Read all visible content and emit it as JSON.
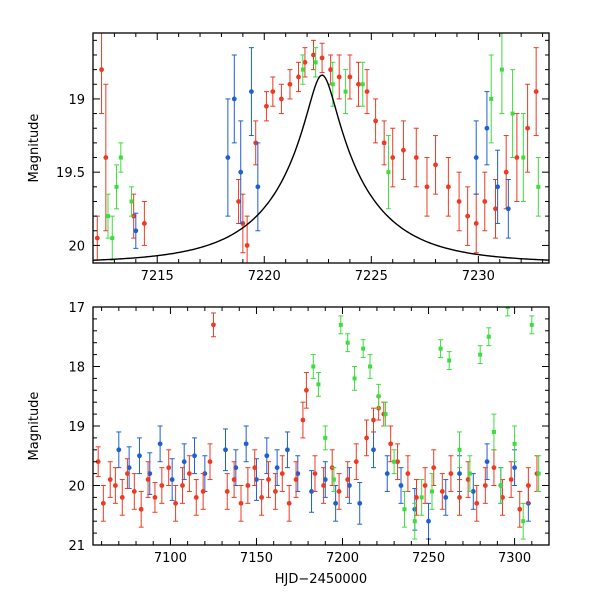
{
  "chart_data": [
    {
      "type": "scatter",
      "panel": "top",
      "title": "",
      "xlabel": "",
      "ylabel": "Magnitude",
      "xlim": [
        7212,
        7233.3
      ],
      "ylim": [
        20.12,
        18.55
      ],
      "x_ticks_major": [
        7215,
        7220,
        7225,
        7230
      ],
      "x_tick_labels": [
        "7215",
        "7220",
        "7225",
        "7230"
      ],
      "y_ticks_major": [
        19.0,
        19.5,
        20.0
      ],
      "y_tick_labels": [
        "19",
        "19.5",
        "20"
      ],
      "series_colors": {
        "red": "#ee3a22",
        "blue": "#1f5fd6",
        "green": "#3fdc3f",
        "model": "#000000"
      },
      "model_curve": {
        "description": "Paczynski-like microlensing fit",
        "t0": 7222.7,
        "u0": 0.15,
        "tE": 4.2,
        "baseline_mag": 20.12
      },
      "series": [
        {
          "name": "red",
          "points": [
            [
              7212.2,
              19.95,
              0.15
            ],
            [
              7212.4,
              18.8,
              0.3
            ],
            [
              7212.6,
              19.4,
              0.5
            ],
            [
              7213.9,
              19.8,
              0.15
            ],
            [
              7214.4,
              19.85,
              0.15
            ],
            [
              7218.8,
              19.7,
              0.15
            ],
            [
              7219.0,
              19.85,
              0.2
            ],
            [
              7219.2,
              20.0,
              0.2
            ],
            [
              7219.6,
              19.3,
              0.15
            ],
            [
              7220.1,
              19.05,
              0.1
            ],
            [
              7220.4,
              18.95,
              0.1
            ],
            [
              7220.8,
              19.0,
              0.1
            ],
            [
              7221.2,
              18.9,
              0.1
            ],
            [
              7221.6,
              18.85,
              0.1
            ],
            [
              7221.9,
              18.75,
              0.1
            ],
            [
              7222.3,
              18.7,
              0.1
            ],
            [
              7222.7,
              18.72,
              0.1
            ],
            [
              7223.1,
              18.8,
              0.1
            ],
            [
              7223.5,
              18.85,
              0.15
            ],
            [
              7224.0,
              18.85,
              0.15
            ],
            [
              7224.4,
              18.9,
              0.15
            ],
            [
              7224.8,
              18.95,
              0.15
            ],
            [
              7225.2,
              19.15,
              0.15
            ],
            [
              7225.6,
              19.3,
              0.15
            ],
            [
              7226.0,
              19.4,
              0.2
            ],
            [
              7226.5,
              19.35,
              0.2
            ],
            [
              7227.1,
              19.4,
              0.2
            ],
            [
              7227.6,
              19.6,
              0.2
            ],
            [
              7228.0,
              19.45,
              0.2
            ],
            [
              7228.6,
              19.6,
              0.2
            ],
            [
              7229.1,
              19.7,
              0.2
            ],
            [
              7229.5,
              19.8,
              0.2
            ],
            [
              7229.9,
              19.85,
              0.2
            ],
            [
              7230.3,
              19.7,
              0.2
            ],
            [
              7230.8,
              19.75,
              0.2
            ],
            [
              7231.3,
              19.5,
              0.25
            ],
            [
              7231.8,
              19.4,
              0.3
            ],
            [
              7232.3,
              19.2,
              0.3
            ],
            [
              7232.7,
              18.95,
              0.3
            ]
          ]
        },
        {
          "name": "blue",
          "points": [
            [
              7214.0,
              19.9,
              0.12
            ],
            [
              7218.3,
              19.4,
              0.4
            ],
            [
              7218.6,
              19.0,
              0.3
            ],
            [
              7218.9,
              19.5,
              0.35
            ],
            [
              7219.4,
              18.95,
              0.3
            ],
            [
              7219.7,
              19.6,
              0.3
            ],
            [
              7229.9,
              19.4,
              0.25
            ],
            [
              7230.4,
              19.2,
              0.25
            ],
            [
              7230.9,
              19.6,
              0.25
            ],
            [
              7231.4,
              19.75,
              0.2
            ]
          ]
        },
        {
          "name": "green",
          "points": [
            [
              7212.7,
              19.8,
              0.15
            ],
            [
              7212.9,
              19.95,
              0.15
            ],
            [
              7213.1,
              19.6,
              0.15
            ],
            [
              7213.3,
              19.4,
              0.1
            ],
            [
              7213.8,
              19.7,
              0.1
            ],
            [
              7221.8,
              18.8,
              0.1
            ],
            [
              7222.4,
              18.75,
              0.1
            ],
            [
              7223.2,
              18.9,
              0.15
            ],
            [
              7223.8,
              18.95,
              0.15
            ],
            [
              7224.6,
              18.9,
              0.15
            ],
            [
              7225.8,
              19.5,
              0.25
            ],
            [
              7230.6,
              19.0,
              0.3
            ],
            [
              7231.1,
              18.8,
              0.3
            ],
            [
              7231.6,
              19.1,
              0.3
            ],
            [
              7232.1,
              19.4,
              0.3
            ],
            [
              7232.8,
              19.6,
              0.2
            ]
          ]
        }
      ]
    },
    {
      "type": "scatter",
      "panel": "bottom",
      "title": "",
      "xlabel": "HJD−2450000",
      "ylabel": "Magnitude",
      "xlim": [
        7055,
        7320
      ],
      "ylim": [
        21,
        17
      ],
      "x_ticks_major": [
        7100,
        7150,
        7200,
        7250,
        7300
      ],
      "x_tick_labels": [
        "7100",
        "7150",
        "7200",
        "7250",
        "7300"
      ],
      "y_ticks_major": [
        17,
        18,
        19,
        20,
        21
      ],
      "y_tick_labels": [
        "17",
        "18",
        "19",
        "20",
        "21"
      ],
      "series_colors": {
        "red": "#ee3a22",
        "blue": "#1f5fd6",
        "green": "#3fdc3f"
      },
      "series": [
        {
          "name": "blue",
          "points": [
            [
              7070,
              19.4,
              0.3
            ],
            [
              7076,
              19.7,
              0.35
            ],
            [
              7082,
              19.5,
              0.3
            ],
            [
              7088,
              19.8,
              0.35
            ],
            [
              7094,
              19.3,
              0.3
            ],
            [
              7101,
              19.9,
              0.35
            ],
            [
              7108,
              19.6,
              0.3
            ],
            [
              7114,
              19.5,
              0.3
            ],
            [
              7120,
              19.8,
              0.3
            ],
            [
              7132,
              19.4,
              0.35
            ],
            [
              7138,
              19.7,
              0.3
            ],
            [
              7144,
              19.3,
              0.3
            ],
            [
              7150,
              19.9,
              0.35
            ],
            [
              7156,
              19.5,
              0.3
            ],
            [
              7162,
              19.7,
              0.3
            ],
            [
              7168,
              19.4,
              0.3
            ],
            [
              7174,
              19.8,
              0.3
            ],
            [
              7182,
              20.1,
              0.35
            ],
            [
              7190,
              19.9,
              0.3
            ],
            [
              7196,
              20.3,
              0.3
            ],
            [
              7204,
              20.0,
              0.3
            ],
            [
              7210,
              20.3,
              0.35
            ],
            [
              7218,
              19.4,
              0.3
            ],
            [
              7226,
              19.8,
              0.3
            ],
            [
              7234,
              20.0,
              0.3
            ],
            [
              7242,
              20.4,
              0.35
            ],
            [
              7250,
              20.6,
              0.3
            ],
            [
              7260,
              20.2,
              0.3
            ],
            [
              7268,
              19.8,
              0.3
            ],
            [
              7276,
              20.1,
              0.3
            ],
            [
              7284,
              19.6,
              0.3
            ],
            [
              7292,
              20.0,
              0.3
            ],
            [
              7300,
              19.7,
              0.3
            ],
            [
              7308,
              20.3,
              0.3
            ]
          ]
        },
        {
          "name": "red",
          "points": [
            [
              7058,
              19.6,
              0.25
            ],
            [
              7061,
              20.3,
              0.3
            ],
            [
              7065,
              19.9,
              0.3
            ],
            [
              7068,
              20.0,
              0.3
            ],
            [
              7072,
              20.2,
              0.3
            ],
            [
              7075,
              19.8,
              0.25
            ],
            [
              7079,
              20.1,
              0.3
            ],
            [
              7083,
              20.4,
              0.3
            ],
            [
              7087,
              19.9,
              0.3
            ],
            [
              7091,
              20.2,
              0.25
            ],
            [
              7095,
              20.0,
              0.3
            ],
            [
              7099,
              19.7,
              0.3
            ],
            [
              7103,
              20.3,
              0.3
            ],
            [
              7107,
              20.0,
              0.3
            ],
            [
              7111,
              19.8,
              0.3
            ],
            [
              7115,
              20.2,
              0.3
            ],
            [
              7119,
              20.1,
              0.3
            ],
            [
              7123,
              19.6,
              0.3
            ],
            [
              7125,
              17.3,
              0.2
            ],
            [
              7133,
              20.1,
              0.3
            ],
            [
              7137,
              19.9,
              0.3
            ],
            [
              7141,
              20.3,
              0.3
            ],
            [
              7145,
              20.0,
              0.3
            ],
            [
              7149,
              19.7,
              0.3
            ],
            [
              7153,
              20.2,
              0.3
            ],
            [
              7157,
              19.9,
              0.3
            ],
            [
              7161,
              20.1,
              0.3
            ],
            [
              7165,
              19.8,
              0.3
            ],
            [
              7169,
              20.3,
              0.3
            ],
            [
              7173,
              19.9,
              0.3
            ],
            [
              7177,
              18.9,
              0.3
            ],
            [
              7179,
              18.4,
              0.3
            ],
            [
              7184,
              19.8,
              0.3
            ],
            [
              7189,
              20.0,
              0.3
            ],
            [
              7194,
              19.7,
              0.3
            ],
            [
              7198,
              20.1,
              0.3
            ],
            [
              7203,
              19.9,
              0.3
            ],
            [
              7208,
              19.6,
              0.3
            ],
            [
              7214,
              19.2,
              0.3
            ],
            [
              7218,
              18.9,
              0.2
            ],
            [
              7221,
              18.7,
              0.2
            ],
            [
              7224,
              18.8,
              0.2
            ],
            [
              7228,
              19.3,
              0.3
            ],
            [
              7232,
              19.6,
              0.3
            ],
            [
              7238,
              19.8,
              0.3
            ],
            [
              7243,
              20.2,
              0.3
            ],
            [
              7248,
              20.0,
              0.3
            ],
            [
              7253,
              19.7,
              0.3
            ],
            [
              7258,
              20.1,
              0.3
            ],
            [
              7263,
              19.8,
              0.3
            ],
            [
              7268,
              20.2,
              0.3
            ],
            [
              7273,
              19.9,
              0.3
            ],
            [
              7278,
              20.3,
              0.3
            ],
            [
              7283,
              20.0,
              0.3
            ],
            [
              7288,
              19.7,
              0.3
            ],
            [
              7293,
              20.2,
              0.3
            ],
            [
              7298,
              19.9,
              0.3
            ],
            [
              7303,
              20.4,
              0.3
            ],
            [
              7308,
              20.0,
              0.3
            ],
            [
              7313,
              19.8,
              0.3
            ]
          ]
        },
        {
          "name": "green",
          "points": [
            [
              7183,
              18.0,
              0.2
            ],
            [
              7186,
              18.3,
              0.2
            ],
            [
              7190,
              19.2,
              0.2
            ],
            [
              7195,
              19.9,
              0.2
            ],
            [
              7199,
              17.3,
              0.15
            ],
            [
              7203,
              17.6,
              0.15
            ],
            [
              7207,
              18.2,
              0.2
            ],
            [
              7212,
              17.7,
              0.15
            ],
            [
              7216,
              18.0,
              0.2
            ],
            [
              7221,
              18.5,
              0.2
            ],
            [
              7225,
              18.8,
              0.2
            ],
            [
              7230,
              19.6,
              0.2
            ],
            [
              7236,
              20.4,
              0.3
            ],
            [
              7242,
              20.6,
              0.3
            ],
            [
              7246,
              20.2,
              0.3
            ],
            [
              7252,
              20.1,
              0.3
            ],
            [
              7257,
              17.7,
              0.15
            ],
            [
              7262,
              17.9,
              0.15
            ],
            [
              7268,
              19.4,
              0.3
            ],
            [
              7274,
              19.8,
              0.3
            ],
            [
              7280,
              17.8,
              0.15
            ],
            [
              7285,
              17.5,
              0.15
            ],
            [
              7288,
              19.1,
              0.3
            ],
            [
              7292,
              20.0,
              0.3
            ],
            [
              7296,
              17.0,
              0.15
            ],
            [
              7300,
              19.3,
              0.3
            ],
            [
              7305,
              20.6,
              0.3
            ],
            [
              7310,
              17.3,
              0.15
            ],
            [
              7314,
              19.8,
              0.3
            ]
          ]
        }
      ]
    }
  ]
}
